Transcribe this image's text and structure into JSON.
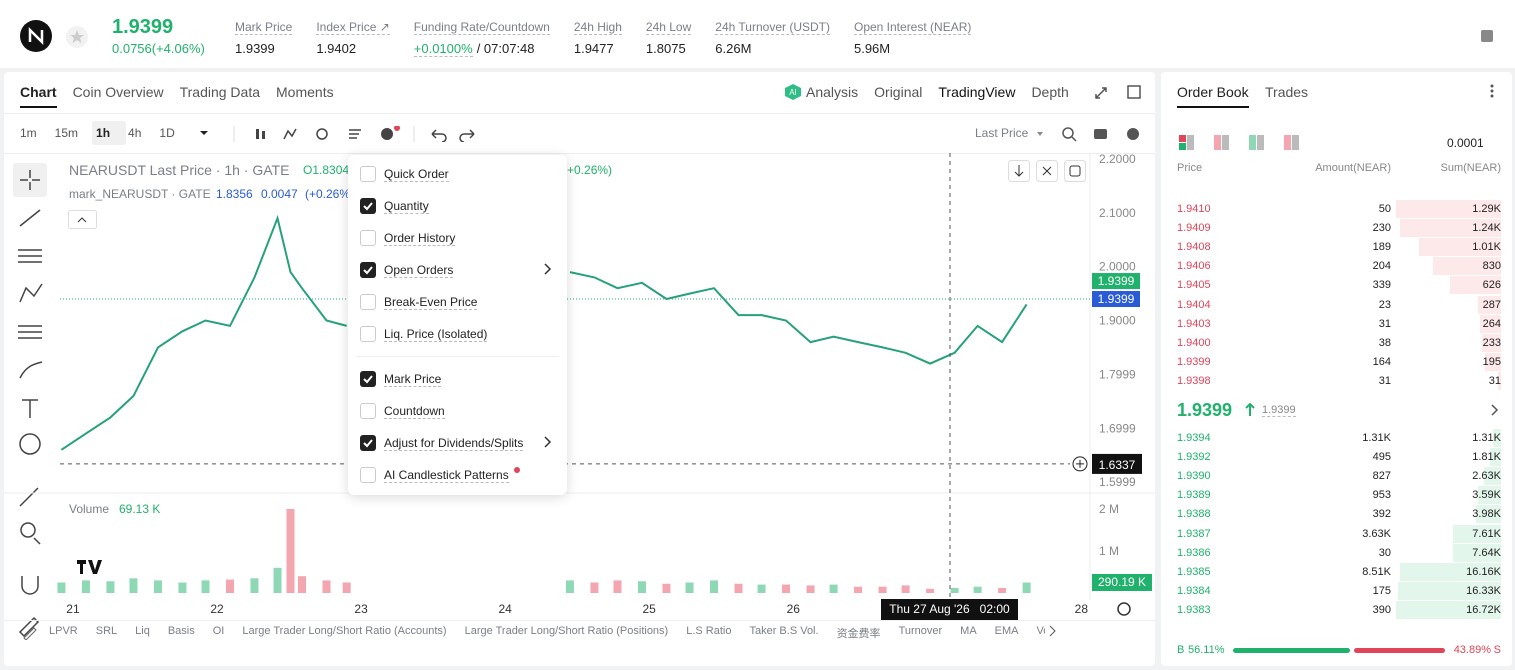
{
  "header": {
    "price": "1.9399",
    "change": "0.0756(+4.06%)",
    "stats": [
      {
        "label": "Mark Price",
        "value": "1.9399"
      },
      {
        "label": "Index Price ↗",
        "value": "1.9402"
      },
      {
        "label": "Funding Rate/Countdown",
        "value": "+0.0100%",
        "extra": "/ 07:07:48"
      },
      {
        "label": "24h High",
        "value": "1.9477"
      },
      {
        "label": "24h Low",
        "value": "1.8075"
      },
      {
        "label": "24h Turnover (USDT)",
        "value": "6.26M"
      },
      {
        "label": "Open Interest (NEAR)",
        "value": "5.96M"
      }
    ]
  },
  "tabs": [
    "Chart",
    "Coin Overview",
    "Trading Data",
    "Moments"
  ],
  "views": [
    "Analysis",
    "Original",
    "TradingView",
    "Depth"
  ],
  "intervals": [
    "1m",
    "15m",
    "1h",
    "4h",
    "1D"
  ],
  "price_source": "Last Price",
  "legend": {
    "title": "NEARUSDT Last Price · 1h · GATE",
    "open": "O1.8304",
    "change_tail": "+0.26%)",
    "mark_title": "mark_NEARUSDT · GATE",
    "mark_price": "1.8356",
    "mark_change": "0.0047",
    "mark_pct": "(+0.26%"
  },
  "menu": [
    {
      "label": "Quick Order",
      "checked": false,
      "submenu": false
    },
    {
      "label": "Quantity",
      "checked": true,
      "submenu": false
    },
    {
      "label": "Order History",
      "checked": false,
      "submenu": false
    },
    {
      "label": "Open Orders",
      "checked": true,
      "submenu": true
    },
    {
      "label": "Break-Even Price",
      "checked": false,
      "submenu": false
    },
    {
      "label": "Liq. Price (Isolated)",
      "checked": false,
      "submenu": false
    },
    {
      "label": "Mark Price",
      "checked": true,
      "submenu": false
    },
    {
      "label": "Countdown",
      "checked": false,
      "submenu": false
    },
    {
      "label": "Adjust for Dividends/Splits",
      "checked": true,
      "submenu": true
    },
    {
      "label": "AI Candlestick Patterns",
      "checked": false,
      "submenu": false
    }
  ],
  "chart": {
    "type": "line",
    "x": [
      20.92,
      21.09,
      21.26,
      21.42,
      21.59,
      21.76,
      21.92,
      22.09,
      22.26,
      22.42,
      22.51,
      22.59,
      22.76,
      22.9,
      23.67,
      24.45,
      24.62,
      24.78,
      24.95,
      25.12,
      25.28,
      25.45,
      25.62,
      25.78,
      25.95,
      26.12,
      26.28,
      26.45,
      26.62,
      26.78,
      26.95,
      27.12,
      27.28,
      27.45,
      27.62
    ],
    "price": {
      "color": "#26a17b",
      "values": [
        1.66,
        1.69,
        1.72,
        1.76,
        1.85,
        1.88,
        1.9,
        1.89,
        1.98,
        2.09,
        1.99,
        1.96,
        1.9,
        1.89,
        null,
        1.99,
        1.98,
        1.96,
        1.97,
        1.94,
        1.95,
        1.96,
        1.91,
        1.91,
        1.9,
        1.86,
        1.87,
        1.86,
        1.85,
        1.84,
        1.82,
        1.84,
        1.89,
        1.86,
        1.93
      ]
    },
    "volume": {
      "values": [
        250000,
        300000,
        280000,
        350000,
        300000,
        250000,
        300000,
        320000,
        350000,
        600000,
        2000000,
        400000,
        300000,
        250000,
        null,
        300000,
        250000,
        300000,
        280000,
        220000,
        250000,
        300000,
        220000,
        200000,
        200000,
        180000,
        200000,
        150000,
        150000,
        180000,
        100000,
        120000,
        150000,
        120000,
        250000
      ]
    },
    "xlim": [
      20.91,
      28.06
    ],
    "xticks": [
      21,
      22,
      23,
      24,
      25,
      26,
      27,
      28
    ],
    "ylim": [
      1.5704,
      2.2111
    ],
    "yticks": [
      {
        "value": 2.2,
        "label": "2.2000"
      },
      {
        "value": 2.1,
        "label": "2.1000"
      },
      {
        "value": 2,
        "label": "2.0000"
      },
      {
        "value": 1.9,
        "label": "1.9000"
      },
      1.7999,
      1.6999,
      1.5999
    ],
    "vlim": [
      0,
      2238000
    ],
    "vticks": [
      {
        "value": 2000000,
        "label": "2 M"
      },
      {
        "value": 1000000,
        "label": "1 M"
      }
    ],
    "last_price": {
      "value": 1.9399,
      "label": "1.9399"
    },
    "mark_price": {
      "value": 1.9399,
      "label": "1.9399"
    },
    "crosshair": {
      "value": 1.6337,
      "label": "1.6337",
      "time": "Thu 27 Aug '26   02:00"
    },
    "volume_title": "Volume",
    "volume_value": "69.13 K",
    "volume_tag": "290.19 K"
  },
  "indicators": [
    "LPVR",
    "SRL",
    "Liq",
    "Basis",
    "OI",
    "Large Trader Long/Short Ratio (Accounts)",
    "Large Trader Long/Short Ratio (Positions)",
    "L.S Ratio",
    "Taker B.S Vol.",
    "资金费率",
    "Turnover",
    "MA",
    "EMA",
    "Volu"
  ],
  "order_book": {
    "tabs": [
      "Order Book",
      "Trades"
    ],
    "precision": "0.0001",
    "columns": [
      "Price",
      "Amount(NEAR)",
      "Sum(NEAR)"
    ],
    "asks": [
      [
        "1.9410",
        "50",
        "1.29K"
      ],
      [
        "1.9409",
        "230",
        "1.24K"
      ],
      [
        "1.9408",
        "189",
        "1.01K"
      ],
      [
        "1.9406",
        "204",
        "830"
      ],
      [
        "1.9405",
        "339",
        "626"
      ],
      [
        "1.9404",
        "23",
        "287"
      ],
      [
        "1.9403",
        "31",
        "264"
      ],
      [
        "1.9400",
        "38",
        "233"
      ],
      [
        "1.9399",
        "164",
        "195"
      ],
      [
        "1.9398",
        "31",
        "31"
      ]
    ],
    "mid_price": "1.9399",
    "mid_mark": "1.9399",
    "bids": [
      [
        "1.9394",
        "1.31K",
        "1.31K"
      ],
      [
        "1.9392",
        "495",
        "1.81K"
      ],
      [
        "1.9390",
        "827",
        "2.63K"
      ],
      [
        "1.9389",
        "953",
        "3.59K"
      ],
      [
        "1.9388",
        "392",
        "3.98K"
      ],
      [
        "1.9387",
        "3.63K",
        "7.61K"
      ],
      [
        "1.9386",
        "30",
        "7.64K"
      ],
      [
        "1.9385",
        "8.51K",
        "16.16K"
      ],
      [
        "1.9384",
        "175",
        "16.33K"
      ],
      [
        "1.9383",
        "390",
        "16.72K"
      ]
    ],
    "buy_ratio": "56.11%",
    "sell_ratio": "43.89%",
    "buy_tag": "B",
    "sell_tag": "S"
  }
}
